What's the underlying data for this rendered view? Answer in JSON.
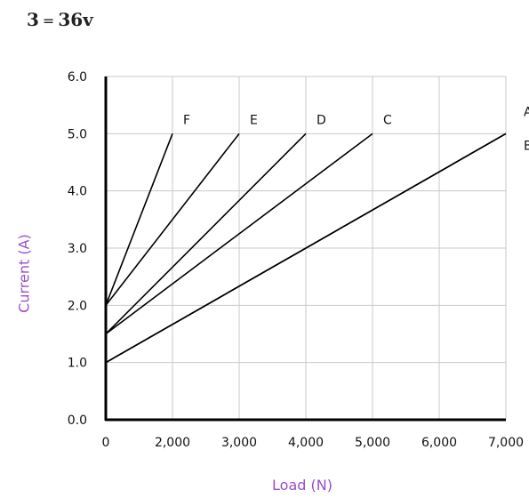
{
  "heading": {
    "left": "3",
    "equals": "=",
    "right": "36v"
  },
  "colors": {
    "axis_label": "#9b4dca",
    "line": "#000000",
    "grid": "#c8c8c8"
  },
  "chart_data": {
    "type": "line",
    "xlabel": "Load (N)",
    "ylabel": "Current (A)",
    "xlim": [
      0,
      7000
    ],
    "ylim": [
      0,
      6
    ],
    "xticks": [
      "0",
      "2,000",
      "3,000",
      "4,000",
      "5,000",
      "6,000",
      "7,000"
    ],
    "xtick_values": [
      0,
      2000,
      3000,
      4000,
      5000,
      6000,
      7000
    ],
    "yticks": [
      "0.0",
      "1.0",
      "2.0",
      "3.0",
      "4.0",
      "5.0",
      "6.0"
    ],
    "ytick_values": [
      0,
      1,
      2,
      3,
      4,
      5,
      6
    ],
    "grid": true,
    "series": [
      {
        "name": "A",
        "x": [
          0,
          7000
        ],
        "y": [
          1.0,
          5.0
        ]
      },
      {
        "name": "B",
        "x": [
          0,
          7000
        ],
        "y": [
          1.0,
          5.0
        ]
      },
      {
        "name": "C",
        "x": [
          0,
          5000
        ],
        "y": [
          1.5,
          5.0
        ]
      },
      {
        "name": "D",
        "x": [
          0,
          4000
        ],
        "y": [
          1.5,
          5.0
        ]
      },
      {
        "name": "E",
        "x": [
          0,
          3000
        ],
        "y": [
          2.0,
          5.0
        ]
      },
      {
        "name": "F",
        "x": [
          0,
          2000
        ],
        "y": [
          2.0,
          5.0
        ]
      }
    ]
  }
}
